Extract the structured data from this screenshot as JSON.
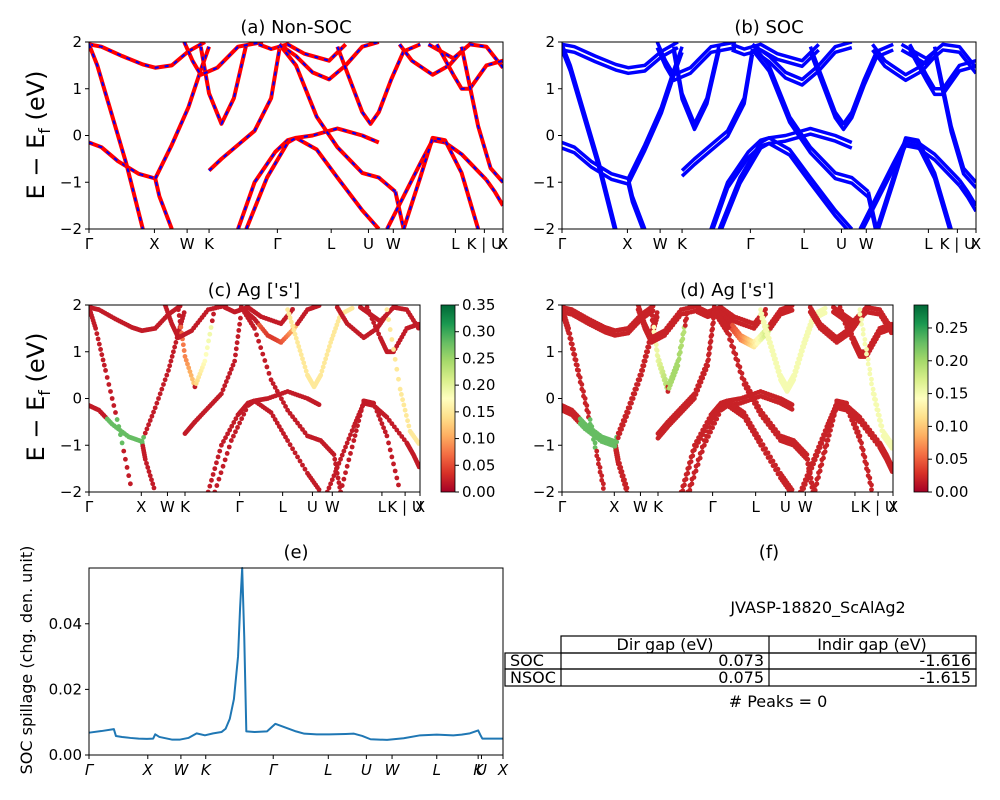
{
  "colors": {
    "non_soc_line": "#ff0000",
    "non_soc_dash": "#0000ff",
    "soc_line": "#0000ff",
    "spillage_line": "#1f77b4",
    "colormap": "RdYlGn",
    "colormap_stops": [
      "#a50026",
      "#d73027",
      "#f46d43",
      "#fdae61",
      "#fee08b",
      "#ffffbf",
      "#d9ef8b",
      "#a6d96a",
      "#66bd63",
      "#1a9850",
      "#006837"
    ]
  },
  "bands_ylabel": "E − E",
  "bands_ylabel_sub": "f",
  "bands_ylabel_unit": " (eV)",
  "kpath_labels": [
    "Γ",
    "X",
    "W",
    "K",
    "Γ",
    "L",
    "U",
    "W",
    "L",
    "K | U",
    "X"
  ],
  "kpath_labels_italic": [
    "Γ",
    "X",
    "W",
    "K",
    "Γ",
    "L",
    "U",
    "W",
    "L",
    "K",
    "U",
    "X"
  ],
  "chart_data": [
    {
      "id": "a",
      "type": "line",
      "title": "(a) Non-SOC",
      "ylim": [
        -2,
        2
      ],
      "yticks": [
        "−2",
        "−1",
        "0",
        "1",
        "2"
      ],
      "ytick_values": [
        -2,
        -1,
        0,
        1,
        2
      ],
      "xticks": [
        "Γ",
        "X",
        "W",
        "K",
        "Γ",
        "L",
        "U",
        "W",
        "L",
        "K | U",
        "X"
      ],
      "x_range": [
        0,
        1
      ],
      "series": [
        {
          "x": [
            0,
            0.03,
            0.08,
            0.13,
            0.16,
            0.2,
            0.24,
            0.28
          ],
          "y": [
            1.95,
            1.9,
            1.7,
            1.52,
            1.45,
            1.5,
            1.8,
            2.0
          ]
        },
        {
          "x": [
            0,
            0.03,
            0.07,
            0.12,
            0.16,
            0.17,
            0.2
          ],
          "y": [
            -0.15,
            -0.25,
            -0.55,
            -0.82,
            -0.92,
            -1.3,
            -2.0
          ]
        },
        {
          "x": [
            0,
            0.02,
            0.05,
            0.09,
            0.13
          ],
          "y": [
            1.95,
            1.5,
            0.6,
            -0.6,
            -2.0
          ]
        },
        {
          "x": [
            0.16,
            0.2,
            0.24,
            0.27,
            0.29
          ],
          "y": [
            -0.92,
            -0.2,
            0.6,
            1.4,
            1.9
          ]
        },
        {
          "x": [
            0.27,
            0.29,
            0.32,
            0.35,
            0.38
          ],
          "y": [
            1.9,
            0.9,
            0.25,
            0.8,
            1.95
          ]
        },
        {
          "x": [
            0.23,
            0.25,
            0.27,
            0.31,
            0.36,
            0.42
          ],
          "y": [
            2.0,
            1.6,
            1.3,
            1.45,
            1.9,
            2.0
          ]
        },
        {
          "x": [
            0.29,
            0.32,
            0.36,
            0.4,
            0.44,
            0.46
          ],
          "y": [
            -0.75,
            -0.5,
            -0.2,
            0.1,
            0.8,
            1.85
          ]
        },
        {
          "x": [
            0.36,
            0.4,
            0.45,
            0.48,
            0.5,
            0.54,
            0.6,
            0.66,
            0.7
          ],
          "y": [
            -2.0,
            -1.0,
            -0.35,
            -0.1,
            -0.05,
            0.0,
            0.15,
            0.0,
            -0.15
          ]
        },
        {
          "x": [
            0.38,
            0.43,
            0.48,
            0.5,
            0.55,
            0.6,
            0.66,
            0.7
          ],
          "y": [
            -2.0,
            -0.9,
            -0.15,
            -0.05,
            -0.3,
            -0.9,
            -1.6,
            -2.0
          ]
        },
        {
          "x": [
            0.41,
            0.44,
            0.46,
            0.48,
            0.52,
            0.58,
            0.62
          ],
          "y": [
            1.95,
            1.85,
            1.9,
            1.95,
            1.75,
            1.6,
            1.95
          ]
        },
        {
          "x": [
            0.46,
            0.5,
            0.54,
            0.58,
            0.62,
            0.66,
            0.7
          ],
          "y": [
            1.95,
            1.7,
            1.35,
            1.2,
            1.5,
            1.9,
            2.0
          ]
        },
        {
          "x": [
            0.46,
            0.5,
            0.55,
            0.6,
            0.66,
            0.7,
            0.74
          ],
          "y": [
            1.95,
            1.5,
            0.4,
            -0.25,
            -0.8,
            -0.9,
            -1.2
          ]
        },
        {
          "x": [
            0.6,
            0.63,
            0.66,
            0.68,
            0.7,
            0.73,
            0.76,
            0.8
          ],
          "y": [
            1.9,
            1.2,
            0.5,
            0.25,
            0.5,
            1.2,
            1.8,
            1.95
          ]
        },
        {
          "x": [
            0.74,
            0.76,
            0.78,
            0.82
          ],
          "y": [
            -1.2,
            -2.0,
            -2.2,
            -2.2
          ]
        },
        {
          "x": [
            0.75,
            0.78,
            0.83,
            0.87,
            0.9
          ],
          "y": [
            1.95,
            1.6,
            1.3,
            1.5,
            1.8
          ]
        },
        {
          "x": [
            0.72,
            0.76,
            0.8,
            0.83,
            0.86,
            0.9,
            0.96
          ],
          "y": [
            -2.0,
            -1.3,
            -0.6,
            -0.1,
            -0.15,
            -0.4,
            -0.95
          ]
        },
        {
          "x": [
            0.76,
            0.8,
            0.83,
            0.86,
            0.9,
            0.94
          ],
          "y": [
            -2.0,
            -0.9,
            -0.05,
            -0.1,
            -0.8,
            -2.0
          ]
        },
        {
          "x": [
            0.82,
            0.85,
            0.88,
            0.92,
            0.96,
            1.0
          ],
          "y": [
            1.95,
            1.8,
            1.65,
            1.95,
            1.9,
            1.45
          ]
        },
        {
          "x": [
            0.84,
            0.88,
            0.9,
            0.92,
            0.96,
            1.0
          ],
          "y": [
            1.95,
            1.3,
            1.0,
            1.0,
            1.5,
            1.6
          ]
        },
        {
          "x": [
            0.9,
            0.94,
            0.97,
            1.0
          ],
          "y": [
            1.9,
            0.2,
            -0.7,
            -1.0
          ]
        },
        {
          "x": [
            0.96,
            0.98,
            1.0
          ],
          "y": [
            -0.95,
            -1.2,
            -1.5
          ]
        }
      ]
    },
    {
      "id": "b",
      "type": "line",
      "title": "(b) SOC",
      "ylim": [
        -2,
        2
      ],
      "yticks": [
        "−2",
        "−1",
        "0",
        "1",
        "2"
      ],
      "ytick_values": [
        -2,
        -1,
        0,
        1,
        2
      ],
      "xticks": [
        "Γ",
        "X",
        "W",
        "K",
        "Γ",
        "L",
        "U",
        "W",
        "L",
        "K | U",
        "X"
      ],
      "x_range": [
        0,
        1
      ]
    },
    {
      "id": "c",
      "type": "scatter",
      "title": "(c)  Ag ['s']",
      "ylim": [
        -2,
        2
      ],
      "yticks": [
        "−2",
        "−1",
        "0",
        "1",
        "2"
      ],
      "ytick_values": [
        -2,
        -1,
        0,
        1,
        2
      ],
      "xticks": [
        "Γ",
        "X",
        "W",
        "K",
        "Γ",
        "L",
        "U",
        "W",
        "L",
        "K | U",
        "X"
      ],
      "x_range": [
        0,
        1
      ],
      "colorbar_range": [
        0.0,
        0.35
      ],
      "colorbar_ticks": [
        "0.00",
        "0.05",
        "0.10",
        "0.15",
        "0.20",
        "0.25",
        "0.30",
        "0.35"
      ],
      "colorbar_tick_values": [
        0.0,
        0.05,
        0.1,
        0.15,
        0.2,
        0.25,
        0.3,
        0.35
      ]
    },
    {
      "id": "d",
      "type": "scatter",
      "title": "(d) Ag ['s']",
      "ylim": [
        -2,
        2
      ],
      "yticks": [
        "−2",
        "−1",
        "0",
        "1",
        "2"
      ],
      "ytick_values": [
        -2,
        -1,
        0,
        1,
        2
      ],
      "xticks": [
        "Γ",
        "X",
        "W",
        "K",
        "Γ",
        "L",
        "U",
        "W",
        "L",
        "K | U",
        "X"
      ],
      "x_range": [
        0,
        1
      ],
      "colorbar_range": [
        0.0,
        0.285
      ],
      "colorbar_ticks": [
        "0.00",
        "0.05",
        "0.10",
        "0.15",
        "0.20",
        "0.25"
      ],
      "colorbar_tick_values": [
        0.0,
        0.05,
        0.1,
        0.15,
        0.2,
        0.25
      ]
    },
    {
      "id": "e",
      "type": "line",
      "title": "(e)",
      "ylabel": "SOC spillage (chg. den. unit)",
      "ylim": [
        0,
        0.057
      ],
      "yticks": [
        "0.00",
        "0.02",
        "0.04"
      ],
      "ytick_values": [
        0,
        0.02,
        0.04
      ],
      "xticks": [
        "Γ",
        "X",
        "W",
        "K",
        "Γ",
        "L",
        "U",
        "W",
        "L",
        "K",
        "U",
        "X"
      ],
      "x_range": [
        0,
        1
      ],
      "x": [
        0,
        0.03,
        0.06,
        0.065,
        0.08,
        0.1,
        0.12,
        0.14,
        0.155,
        0.16,
        0.17,
        0.2,
        0.22,
        0.24,
        0.26,
        0.28,
        0.3,
        0.32,
        0.33,
        0.34,
        0.35,
        0.36,
        0.365,
        0.37,
        0.375,
        0.38,
        0.4,
        0.43,
        0.45,
        0.5,
        0.52,
        0.55,
        0.58,
        0.62,
        0.64,
        0.66,
        0.68,
        0.72,
        0.76,
        0.8,
        0.84,
        0.88,
        0.9,
        0.92,
        0.94,
        0.945,
        0.95,
        0.97,
        1.0
      ],
      "y": [
        0.0068,
        0.0073,
        0.0079,
        0.0058,
        0.0055,
        0.0052,
        0.005,
        0.0049,
        0.005,
        0.0063,
        0.0055,
        0.0047,
        0.0047,
        0.0052,
        0.0066,
        0.006,
        0.0066,
        0.007,
        0.008,
        0.011,
        0.017,
        0.03,
        0.045,
        0.057,
        0.036,
        0.0072,
        0.007,
        0.0072,
        0.0095,
        0.0072,
        0.0065,
        0.0063,
        0.0063,
        0.0064,
        0.0065,
        0.0058,
        0.0048,
        0.0046,
        0.0051,
        0.006,
        0.0062,
        0.006,
        0.0062,
        0.0066,
        0.0075,
        0.0062,
        0.005,
        0.005,
        0.005
      ]
    }
  ],
  "panel_f": {
    "title": "(f)",
    "material": "JVASP-18820_ScAlAg2",
    "columns": [
      "",
      "Dir gap (eV)",
      "Indir gap (eV)"
    ],
    "rows": [
      {
        "label": "SOC",
        "dir_gap": "0.073",
        "indir_gap": "-1.616"
      },
      {
        "label": "NSOC",
        "dir_gap": "0.075",
        "indir_gap": "-1.615"
      }
    ],
    "peaks": "# Peaks = 0"
  }
}
